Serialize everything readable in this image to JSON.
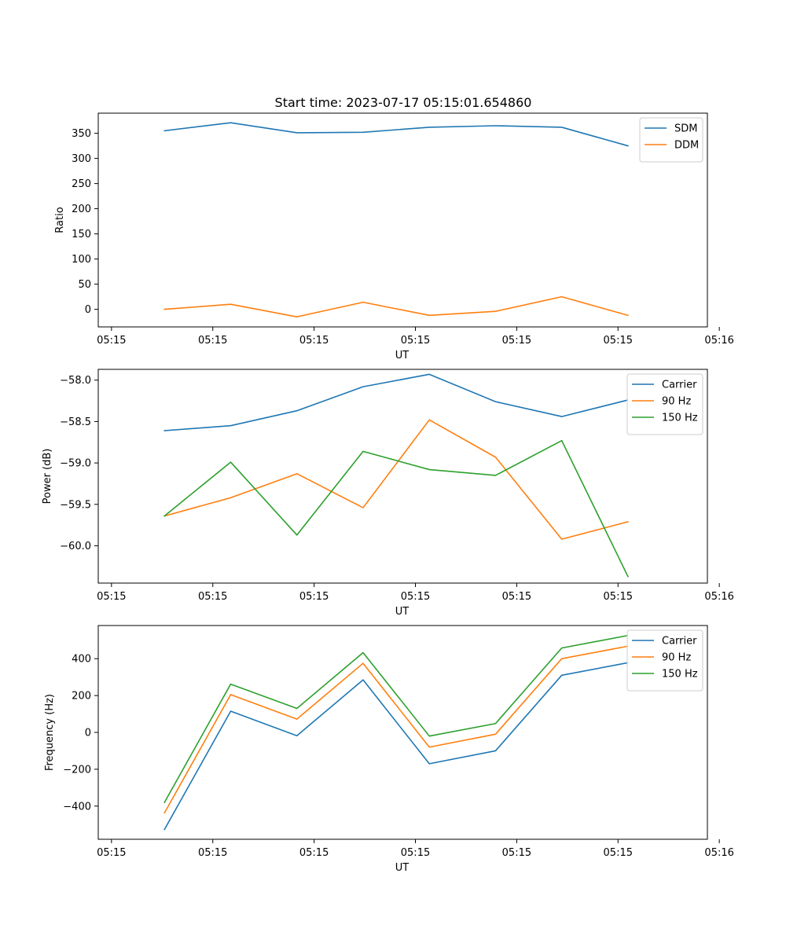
{
  "figure_title": "Start time: 2023-07-17 05:15:01.654860",
  "chart_data": [
    {
      "type": "line",
      "xlabel": "UT",
      "ylabel": "Ratio",
      "x_tick_labels": [
        "05:15",
        "05:15",
        "05:15",
        "05:15",
        "05:15",
        "05:15",
        "05:16"
      ],
      "xlim": [
        0,
        9.2
      ],
      "ylim": [
        -35,
        390
      ],
      "y_ticks": [
        0,
        50,
        100,
        150,
        200,
        250,
        300,
        350
      ],
      "y_tick_labels": [
        "0",
        "50",
        "100",
        "150",
        "200",
        "250",
        "300",
        "350"
      ],
      "x": [
        1,
        2,
        3,
        4,
        5,
        6,
        7,
        8
      ],
      "series": [
        {
          "name": "SDM",
          "color": "#1f77b4",
          "values": [
            355,
            371,
            351,
            352,
            362,
            365,
            362,
            325
          ]
        },
        {
          "name": "DDM",
          "color": "#ff7f0e",
          "values": [
            0,
            10,
            -15,
            14,
            -12,
            -4,
            25,
            -12
          ]
        }
      ],
      "legend": "top-right"
    },
    {
      "type": "line",
      "xlabel": "UT",
      "ylabel": "Power (dB)",
      "x_tick_labels": [
        "05:15",
        "05:15",
        "05:15",
        "05:15",
        "05:15",
        "05:15",
        "05:16"
      ],
      "xlim": [
        0,
        9.2
      ],
      "ylim": [
        -60.45,
        -57.87
      ],
      "y_ticks": [
        -58.0,
        -58.5,
        -59.0,
        -59.5,
        -60.0
      ],
      "y_tick_labels": [
        "−58.0",
        "−58.5",
        "−59.0",
        "−59.5",
        "−60.0"
      ],
      "x": [
        1,
        2,
        3,
        4,
        5,
        6,
        7,
        8
      ],
      "series": [
        {
          "name": "Carrier",
          "color": "#1f77b4",
          "values": [
            -58.61,
            -58.55,
            -58.37,
            -58.08,
            -57.93,
            -58.26,
            -58.44,
            -58.24
          ]
        },
        {
          "name": "90 Hz",
          "color": "#ff7f0e",
          "values": [
            -59.64,
            -59.42,
            -59.13,
            -59.54,
            -58.48,
            -58.93,
            -59.92,
            -59.71
          ]
        },
        {
          "name": "150 Hz",
          "color": "#2ca02c",
          "values": [
            -59.64,
            -58.99,
            -59.87,
            -58.86,
            -59.08,
            -59.15,
            -58.73,
            -60.37
          ]
        }
      ],
      "legend": "top-right"
    },
    {
      "type": "line",
      "xlabel": "UT",
      "ylabel": "Frequency (Hz)",
      "x_tick_labels": [
        "05:15",
        "05:15",
        "05:15",
        "05:15",
        "05:15",
        "05:15",
        "05:16"
      ],
      "xlim": [
        0,
        9.2
      ],
      "ylim": [
        -580,
        580
      ],
      "y_ticks": [
        400,
        200,
        0,
        -200,
        -400
      ],
      "y_tick_labels": [
        "400",
        "200",
        "0",
        "−200",
        "−400"
      ],
      "x": [
        1,
        2,
        3,
        4,
        5,
        6,
        7,
        8
      ],
      "series": [
        {
          "name": "Carrier",
          "color": "#1f77b4",
          "values": [
            -527,
            115,
            -18,
            285,
            -170,
            -100,
            310,
            378
          ]
        },
        {
          "name": "90 Hz",
          "color": "#ff7f0e",
          "values": [
            -437,
            205,
            72,
            375,
            -80,
            -10,
            400,
            468
          ]
        },
        {
          "name": "150 Hz",
          "color": "#2ca02c",
          "values": [
            -380,
            262,
            130,
            433,
            -20,
            48,
            458,
            526
          ]
        }
      ],
      "legend": "top-right"
    }
  ]
}
